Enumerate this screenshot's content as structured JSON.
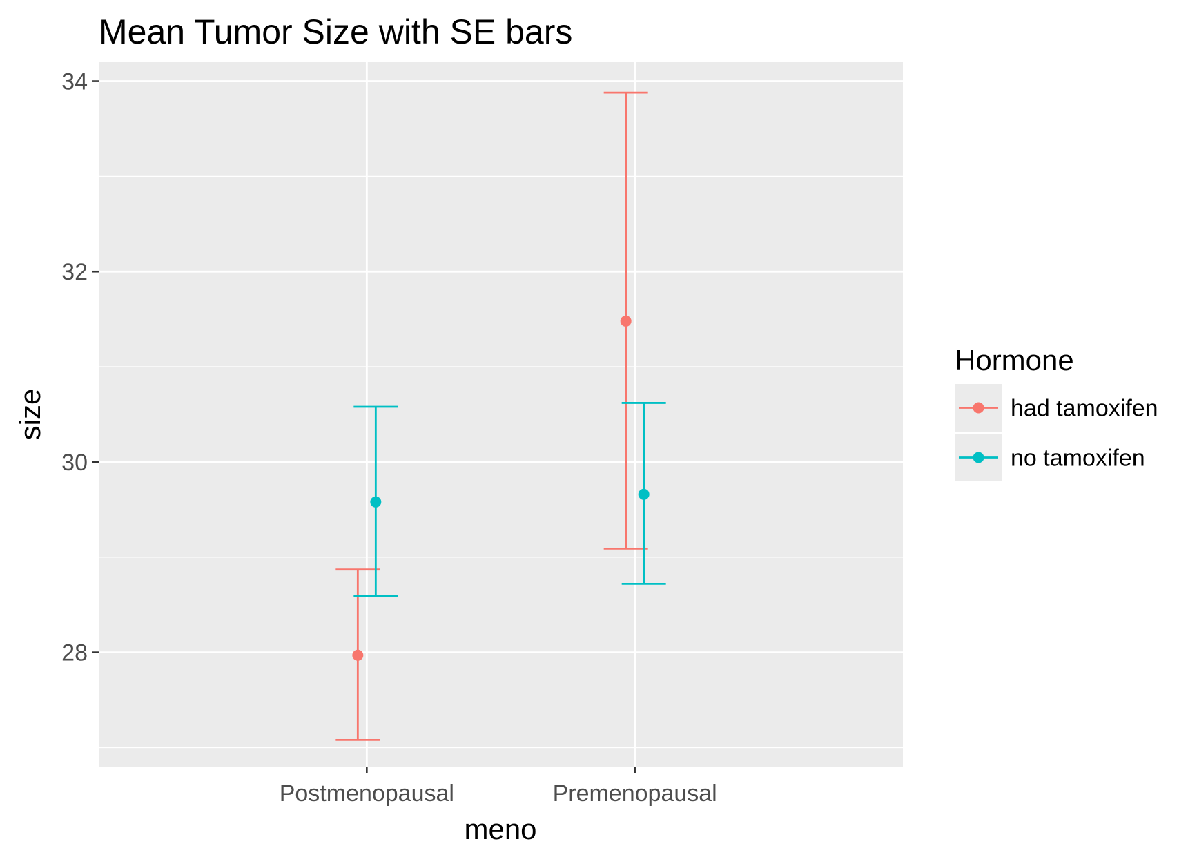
{
  "chart_data": {
    "type": "scatter",
    "subtype": "point-with-errorbars",
    "title": "Mean Tumor Size with SE bars",
    "xlabel": "meno",
    "ylabel": "size",
    "categories": [
      "Postmenopausal",
      "Premenopausal"
    ],
    "ylim": [
      26.8,
      34.2
    ],
    "yticks": [
      28,
      30,
      32,
      34
    ],
    "grid": true,
    "legend": {
      "title": "Hormone",
      "position": "right"
    },
    "series": [
      {
        "name": "had tamoxifen",
        "color": "#F8766D",
        "values": [
          27.97,
          31.48
        ],
        "lower": [
          27.08,
          29.09
        ],
        "upper": [
          28.87,
          33.88
        ]
      },
      {
        "name": "no tamoxifen",
        "color": "#00BFC4",
        "values": [
          29.58,
          29.66
        ],
        "lower": [
          28.59,
          28.72
        ],
        "upper": [
          30.58,
          30.62
        ]
      }
    ]
  }
}
